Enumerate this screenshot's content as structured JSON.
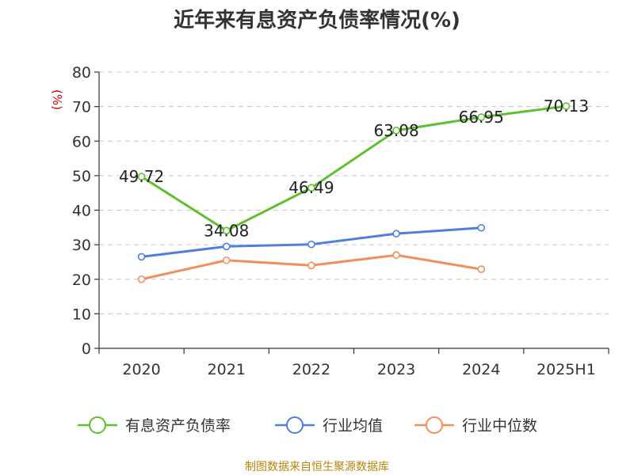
{
  "chart_data": {
    "type": "line",
    "title": "近年来有息资产负债率情况(%)",
    "unit": "(%)",
    "categories": [
      "2020",
      "2021",
      "2022",
      "2023",
      "2024",
      "2025H1"
    ],
    "ylim": [
      0,
      80
    ],
    "yticks": [
      0,
      10,
      20,
      30,
      40,
      50,
      60,
      70,
      80
    ],
    "grid": true,
    "legend_position": "bottom",
    "series": [
      {
        "name": "有息资产负债率",
        "color": "#5cc12d",
        "values": [
          49.72,
          34.08,
          46.49,
          63.08,
          66.95,
          70.13
        ],
        "labels": [
          "49.72",
          "34.08",
          "46.49",
          "63.08",
          "66.95",
          "70.13"
        ]
      },
      {
        "name": "行业均值",
        "color": "#4f7fdc",
        "values": [
          26.5,
          29.5,
          30.1,
          33.2,
          34.9,
          null
        ]
      },
      {
        "name": "行业中位数",
        "color": "#f28e5c",
        "values": [
          20.0,
          25.5,
          24.0,
          27.0,
          22.9,
          null
        ]
      }
    ],
    "source": "制图数据来自恒生聚源数据库"
  }
}
